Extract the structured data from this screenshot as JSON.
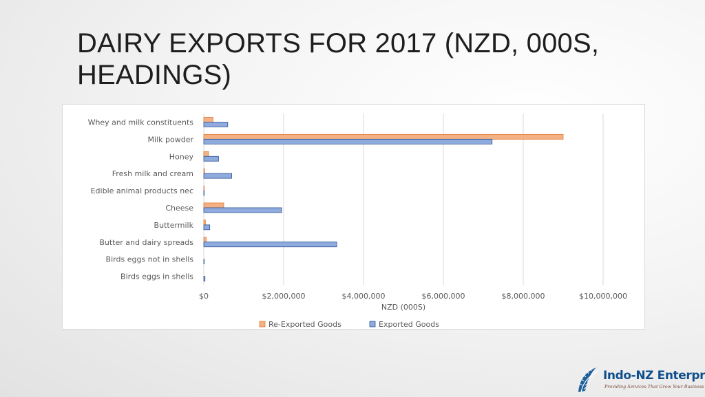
{
  "slide": {
    "title_lines": [
      "DAIRY EXPORTS FOR 2017 (NZD, 000S,",
      "HEADINGS)"
    ]
  },
  "logo": {
    "name": "Indo-NZ Enterprises",
    "tagline": "Providing Services That Grow Your Business Globally"
  },
  "chart_data": {
    "type": "bar",
    "orientation": "horizontal",
    "categories": [
      "Whey and milk constituents",
      "Milk powder",
      "Honey",
      "Fresh milk and cream",
      "Edible animal products nec",
      "Cheese",
      "Buttermilk",
      "Butter and dairy spreads",
      "Birds eggs not in shells",
      "Birds eggs in shells"
    ],
    "series": [
      {
        "name": "Re-Exported Goods",
        "color": "#f4b183",
        "stroke": "#e07b39",
        "values": [
          230000,
          9000000,
          120000,
          20000,
          10000,
          500000,
          40000,
          60000,
          0,
          0
        ]
      },
      {
        "name": "Exported Goods",
        "color": "#8faadc",
        "stroke": "#2f5597",
        "values": [
          600000,
          7220000,
          370000,
          700000,
          10000,
          1950000,
          150000,
          3330000,
          10000,
          30000
        ]
      }
    ],
    "title": "",
    "xlabel": "NZD (000S)",
    "ylabel": "",
    "xlim": [
      0,
      10000000
    ],
    "xticks": [
      0,
      2000000,
      4000000,
      6000000,
      8000000,
      10000000
    ],
    "xtick_labels": [
      "$0",
      "$2,000,000",
      "$4,000,000",
      "$6,000,000",
      "$8,000,000",
      "$10,000,000"
    ],
    "grid": true,
    "legend_position": "bottom"
  }
}
